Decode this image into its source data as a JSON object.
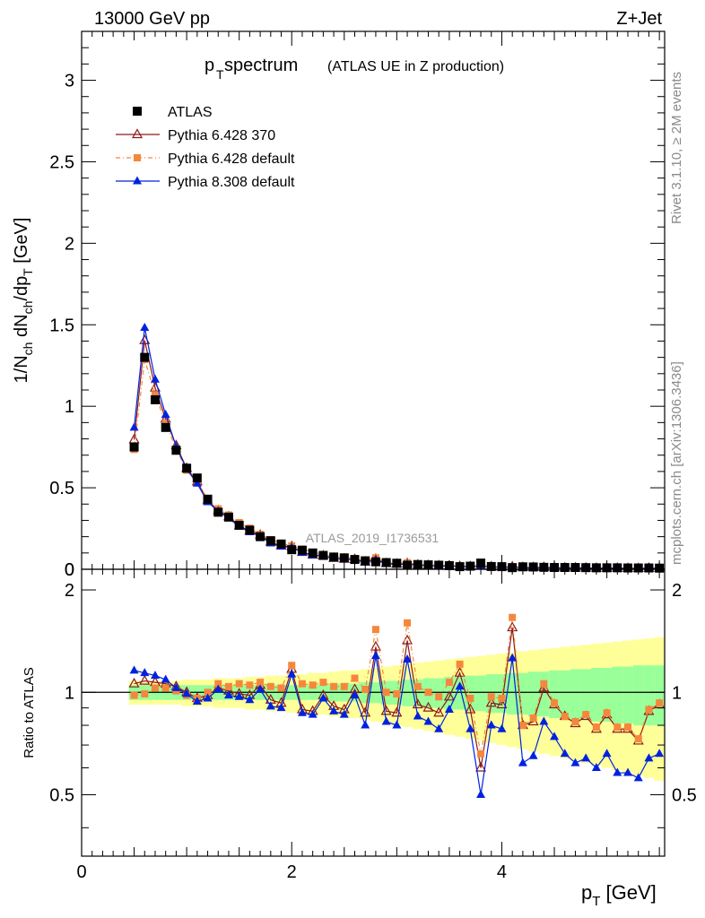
{
  "header": {
    "energy_label": "13000 GeV pp",
    "process_label": "Z+Jet",
    "title_main": "p",
    "title_sub": "T",
    "title_rest": " spectrum",
    "title_paren": "(ATLAS UE in Z production)",
    "watermark": "ATLAS_2019_I1736531",
    "side_top": "Rivet 3.1.10, ≥ 2M events",
    "side_bottom": "mcplots.cern.ch [arXiv:1306.3436]"
  },
  "axes": {
    "upper_ylabel": "1/N_ch dN_ch/dp_T [GeV]",
    "lower_ylabel": "Ratio to ATLAS",
    "xlabel": "p_T [GeV]"
  },
  "colors": {
    "atlas": "#000000",
    "p6_370": "#8b1a1a",
    "p6_default": "#f5873c",
    "p8_default": "#0022dd",
    "band_inner": "#99ff99",
    "band_outer": "#ffff99"
  },
  "chart_data": {
    "type": "line",
    "xlim": [
      0,
      5.55
    ],
    "upper": {
      "ylim": [
        0,
        3.3
      ],
      "yticks": [
        0,
        0.5,
        1,
        1.5,
        2,
        2.5,
        3
      ],
      "yticklabels": [
        "0",
        "0.5",
        "1",
        "1.5",
        "2",
        "2.5",
        "3"
      ]
    },
    "lower": {
      "ylim": [
        0.33,
        2.3
      ],
      "yticks": [
        0.5,
        1,
        2
      ],
      "yticklabels": [
        "0.5",
        "1",
        "2"
      ]
    },
    "xticks": [
      0,
      2,
      4
    ],
    "xticklabels": [
      "0",
      "2",
      "4"
    ],
    "x": [
      0.5,
      0.6,
      0.7,
      0.8,
      0.9,
      1.0,
      1.1,
      1.2,
      1.3,
      1.4,
      1.5,
      1.6,
      1.7,
      1.8,
      1.9,
      2.0,
      2.1,
      2.2,
      2.3,
      2.4,
      2.5,
      2.6,
      2.7,
      2.8,
      2.9,
      3.0,
      3.1,
      3.2,
      3.3,
      3.4,
      3.5,
      3.6,
      3.7,
      3.8,
      3.9,
      4.0,
      4.1,
      4.2,
      4.3,
      4.4,
      4.5,
      4.6,
      4.7,
      4.8,
      4.9,
      5.0,
      5.1,
      5.2,
      5.3,
      5.4,
      5.5
    ],
    "atlas": [
      0.75,
      1.3,
      1.04,
      0.87,
      0.73,
      0.62,
      0.56,
      0.43,
      0.35,
      0.32,
      0.27,
      0.24,
      0.2,
      0.175,
      0.155,
      0.12,
      0.117,
      0.1,
      0.085,
      0.075,
      0.07,
      0.06,
      0.052,
      0.046,
      0.041,
      0.037,
      0.025,
      0.029,
      0.027,
      0.025,
      0.022,
      0.016,
      0.019,
      0.038,
      0.017,
      0.016,
      0.01,
      0.015,
      0.014,
      0.012,
      0.011,
      0.011,
      0.011,
      0.01,
      0.009,
      0.009,
      0.009,
      0.008,
      0.008,
      0.008,
      0.007
    ],
    "band_inner": [
      0.05,
      0.05,
      0.05,
      0.05,
      0.05,
      0.05,
      0.05,
      0.05,
      0.05,
      0.05,
      0.05,
      0.05,
      0.05,
      0.05,
      0.05,
      0.05,
      0.05,
      0.05,
      0.05,
      0.06,
      0.06,
      0.06,
      0.07,
      0.07,
      0.08,
      0.08,
      0.09,
      0.09,
      0.1,
      0.1,
      0.11,
      0.11,
      0.12,
      0.12,
      0.13,
      0.13,
      0.14,
      0.14,
      0.15,
      0.15,
      0.16,
      0.16,
      0.17,
      0.17,
      0.18,
      0.18,
      0.19,
      0.19,
      0.2,
      0.2,
      0.2
    ],
    "band_outer": [
      0.08,
      0.08,
      0.08,
      0.08,
      0.08,
      0.09,
      0.09,
      0.09,
      0.1,
      0.1,
      0.1,
      0.11,
      0.11,
      0.12,
      0.12,
      0.13,
      0.13,
      0.14,
      0.14,
      0.15,
      0.16,
      0.16,
      0.17,
      0.18,
      0.19,
      0.2,
      0.21,
      0.22,
      0.23,
      0.24,
      0.25,
      0.26,
      0.27,
      0.28,
      0.29,
      0.3,
      0.31,
      0.32,
      0.33,
      0.34,
      0.35,
      0.36,
      0.37,
      0.38,
      0.39,
      0.4,
      0.41,
      0.42,
      0.43,
      0.44,
      0.45
    ],
    "series": [
      {
        "name": "ATLAS",
        "key": "atlas",
        "marker": "square",
        "color": "#000000"
      },
      {
        "name": "Pythia 6.428 370",
        "key": "p6_370",
        "marker": "open-triangle",
        "color": "#8b1a1a",
        "ratio": [
          1.06,
          1.08,
          1.07,
          1.06,
          1.04,
          1.0,
          0.96,
          0.98,
          1.03,
          1.01,
          0.99,
          0.98,
          1.05,
          0.95,
          0.93,
          1.17,
          0.89,
          0.88,
          0.98,
          0.91,
          0.89,
          1.02,
          0.87,
          1.36,
          0.88,
          0.87,
          1.42,
          0.92,
          0.9,
          0.87,
          0.97,
          1.14,
          0.89,
          0.6,
          0.93,
          0.92,
          1.55,
          0.8,
          0.82,
          1.03,
          0.92,
          0.85,
          0.81,
          0.85,
          0.78,
          0.86,
          0.78,
          0.78,
          0.72,
          0.88,
          0.92
        ]
      },
      {
        "name": "Pythia 6.428 default",
        "key": "p6_default",
        "marker": "filled-square",
        "color": "#f5873c",
        "ratio": [
          0.98,
          0.99,
          1.03,
          1.03,
          1.01,
          0.98,
          0.96,
          1.0,
          1.06,
          1.04,
          1.06,
          1.05,
          1.07,
          1.04,
          1.03,
          1.2,
          1.06,
          1.05,
          1.07,
          1.04,
          1.04,
          1.1,
          1.02,
          1.53,
          1.0,
          0.99,
          1.6,
          1.04,
          1.0,
          0.97,
          1.07,
          1.21,
          0.96,
          0.66,
          0.97,
          0.96,
          1.66,
          0.8,
          0.84,
          1.06,
          0.93,
          0.85,
          0.82,
          0.86,
          0.79,
          0.87,
          0.79,
          0.79,
          0.73,
          0.89,
          0.93
        ]
      },
      {
        "name": "Pythia 8.308 default",
        "key": "p8_default",
        "marker": "filled-triangle",
        "color": "#0022dd",
        "ratio": [
          1.16,
          1.14,
          1.12,
          1.09,
          1.03,
          0.99,
          0.94,
          0.96,
          1.02,
          0.98,
          0.97,
          0.95,
          1.02,
          0.91,
          0.9,
          1.13,
          0.87,
          0.86,
          0.96,
          0.88,
          0.86,
          0.98,
          0.8,
          1.28,
          0.82,
          0.8,
          1.25,
          0.85,
          0.82,
          0.78,
          0.89,
          1.04,
          0.78,
          0.5,
          0.8,
          0.78,
          1.26,
          0.62,
          0.65,
          0.82,
          0.74,
          0.66,
          0.62,
          0.64,
          0.6,
          0.66,
          0.58,
          0.58,
          0.56,
          0.64,
          0.66
        ]
      }
    ]
  }
}
